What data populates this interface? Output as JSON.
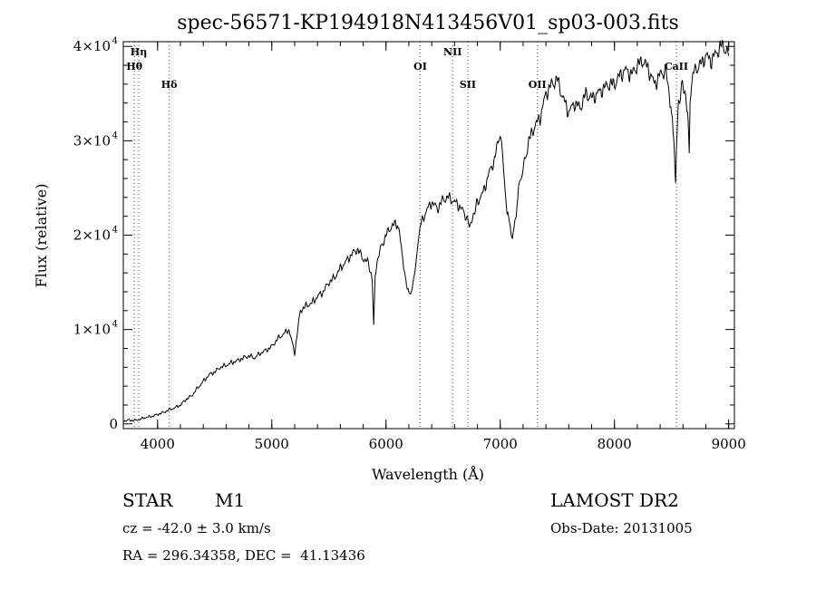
{
  "chart_data": {
    "type": "line",
    "title": "spec-56571-KP194918N413456V01_sp03-003.fits",
    "xlabel": "Wavelength (Å)",
    "ylabel": "Flux (relative)",
    "xlim": [
      3700,
      9050
    ],
    "ylim": [
      -500,
      40500
    ],
    "x_ticks": [
      {
        "value": 4000,
        "label": "4000"
      },
      {
        "value": 5000,
        "label": "5000"
      },
      {
        "value": 6000,
        "label": "6000"
      },
      {
        "value": 7000,
        "label": "7000"
      },
      {
        "value": 8000,
        "label": "8000"
      },
      {
        "value": 9000,
        "label": "9000"
      }
    ],
    "y_ticks": [
      {
        "value": 0,
        "label": "0",
        "exp": ""
      },
      {
        "value": 10000,
        "label": "1×10",
        "exp": "4"
      },
      {
        "value": 20000,
        "label": "2×10",
        "exp": "4"
      },
      {
        "value": 30000,
        "label": "3×10",
        "exp": "4"
      },
      {
        "value": 40000,
        "label": "4×10",
        "exp": "4"
      }
    ],
    "line_markers": [
      {
        "name": "Hη",
        "wavelength": 3835,
        "row": 0
      },
      {
        "name": "Hθ",
        "wavelength": 3797,
        "row": 1
      },
      {
        "name": "Hδ",
        "wavelength": 4102,
        "row": 2
      },
      {
        "name": "OI",
        "wavelength": 6300,
        "row": 1
      },
      {
        "name": "NII",
        "wavelength": 6583,
        "row": 0
      },
      {
        "name": "SII",
        "wavelength": 6716,
        "row": 2
      },
      {
        "name": "OII",
        "wavelength": 7325,
        "row": 2
      },
      {
        "name": "CaII",
        "wavelength": 8542,
        "row": 1
      }
    ],
    "series": [
      {
        "name": "flux",
        "x": [
          3700,
          3750,
          3800,
          3850,
          3900,
          3950,
          4000,
          4050,
          4100,
          4150,
          4200,
          4250,
          4300,
          4350,
          4400,
          4450,
          4500,
          4550,
          4600,
          4650,
          4700,
          4750,
          4800,
          4850,
          4900,
          4950,
          5000,
          5050,
          5100,
          5150,
          5200,
          5250,
          5300,
          5350,
          5400,
          5450,
          5500,
          5550,
          5600,
          5650,
          5700,
          5750,
          5800,
          5850,
          5880,
          5892,
          5905,
          5950,
          6000,
          6050,
          6100,
          6120,
          6140,
          6160,
          6180,
          6200,
          6230,
          6260,
          6300,
          6350,
          6400,
          6450,
          6500,
          6550,
          6600,
          6650,
          6700,
          6730,
          6760,
          6800,
          6850,
          6900,
          6950,
          7000,
          7030,
          7060,
          7080,
          7100,
          7120,
          7140,
          7160,
          7200,
          7250,
          7300,
          7350,
          7400,
          7450,
          7500,
          7550,
          7600,
          7650,
          7700,
          7750,
          7800,
          7850,
          7900,
          7950,
          8000,
          8050,
          8100,
          8150,
          8200,
          8250,
          8300,
          8350,
          8400,
          8450,
          8480,
          8500,
          8520,
          8535,
          8542,
          8560,
          8600,
          8640,
          8655,
          8662,
          8680,
          8700,
          8750,
          8800,
          8850,
          8900,
          8950,
          9000
        ],
        "y": [
          300,
          400,
          350,
          500,
          700,
          800,
          1000,
          1200,
          1500,
          1700,
          2000,
          2600,
          3000,
          3800,
          4500,
          5200,
          5500,
          6000,
          6200,
          6500,
          6700,
          7000,
          7200,
          7000,
          7500,
          7800,
          8200,
          9000,
          9500,
          10000,
          7500,
          12000,
          12500,
          12800,
          13500,
          14000,
          15000,
          15500,
          16500,
          17200,
          18000,
          18500,
          17500,
          17000,
          15000,
          10500,
          16000,
          18500,
          20000,
          21000,
          21200,
          20500,
          18000,
          16000,
          14500,
          13800,
          14200,
          17000,
          21000,
          22500,
          23500,
          22800,
          23800,
          24000,
          23500,
          23000,
          22000,
          21000,
          21800,
          23500,
          24500,
          26500,
          28000,
          31000,
          27000,
          22000,
          21500,
          19500,
          21000,
          22500,
          25000,
          27000,
          30000,
          31500,
          32500,
          35000,
          36000,
          36500,
          34500,
          33000,
          34000,
          33500,
          35000,
          34500,
          35000,
          35500,
          36000,
          36000,
          37000,
          37500,
          37000,
          38000,
          38500,
          37500,
          36000,
          37000,
          37500,
          35000,
          33000,
          30000,
          25500,
          29000,
          34000,
          36000,
          33500,
          28800,
          34500,
          36000,
          37500,
          38000,
          39000,
          38500,
          39500,
          40200,
          39000
        ]
      }
    ]
  },
  "info": {
    "object_class": "STAR",
    "subclass": "M1",
    "survey": "LAMOST DR2",
    "redshift": "cz = -42.0 ± 3.0 km/s",
    "obs_date": "Obs-Date: 20131005",
    "coords": "RA = 296.34358, DEC =  41.13436"
  }
}
